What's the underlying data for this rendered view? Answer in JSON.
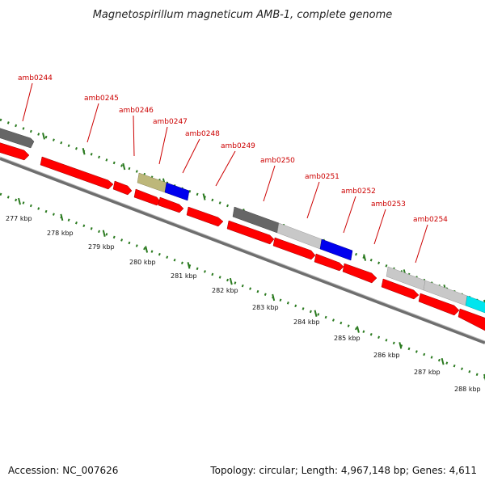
{
  "title": "Magnetospirillum magneticum AMB-1, complete genome",
  "footer": {
    "accession": "Accession: NC_007626",
    "summary": "Topology: circular; Length: 4,967,148 bp; Genes: 4,611"
  },
  "colors": {
    "forward_cds": "#ff0000",
    "reverse_cds": "#ff0000",
    "tick": "#2a7a1f",
    "gene_label": "#cc0000",
    "backbone": "#808080"
  },
  "gene_labels": [
    "amb0244",
    "amb0245",
    "amb0246",
    "amb0247",
    "amb0248",
    "amb0249",
    "amb0250",
    "amb0251",
    "amb0252",
    "amb0253",
    "amb0254"
  ],
  "kbp_labels": [
    "277 kbp",
    "278 kbp",
    "279 kbp",
    "280 kbp",
    "281 kbp",
    "282 kbp",
    "283 kbp",
    "284 kbp",
    "285 kbp",
    "286 kbp",
    "287 kbp",
    "288 kbp"
  ]
}
